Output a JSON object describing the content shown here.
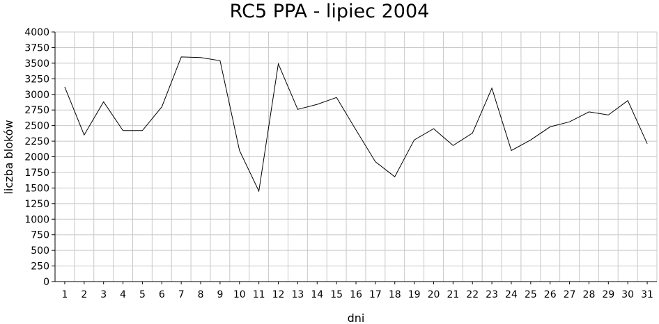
{
  "chart_data": {
    "type": "line",
    "title": "RC5 PPA - lipiec 2004",
    "xlabel": "dni",
    "ylabel": "liczba bloków",
    "x": [
      1,
      2,
      3,
      4,
      5,
      6,
      7,
      8,
      9,
      10,
      11,
      12,
      13,
      14,
      15,
      16,
      17,
      18,
      19,
      20,
      21,
      22,
      23,
      24,
      25,
      26,
      27,
      28,
      29,
      30,
      31
    ],
    "series": [
      {
        "values": [
          3120,
          2350,
          2880,
          2420,
          2420,
          2800,
          3600,
          3590,
          3540,
          2100,
          1450,
          3490,
          2760,
          2840,
          2950,
          2430,
          1920,
          1680,
          2270,
          2450,
          2180,
          2380,
          3100,
          2100,
          2270,
          2480,
          2560,
          2720,
          2670,
          2900,
          2210
        ]
      }
    ],
    "ylim": [
      0,
      4000
    ],
    "yticks": [
      0,
      250,
      500,
      750,
      1000,
      1250,
      1500,
      1750,
      2000,
      2250,
      2500,
      2750,
      3000,
      3250,
      3500,
      3750,
      4000
    ],
    "grid": true,
    "colors": {
      "line": "#000000",
      "grid": "#c8c8c8",
      "axis": "#000000"
    }
  }
}
